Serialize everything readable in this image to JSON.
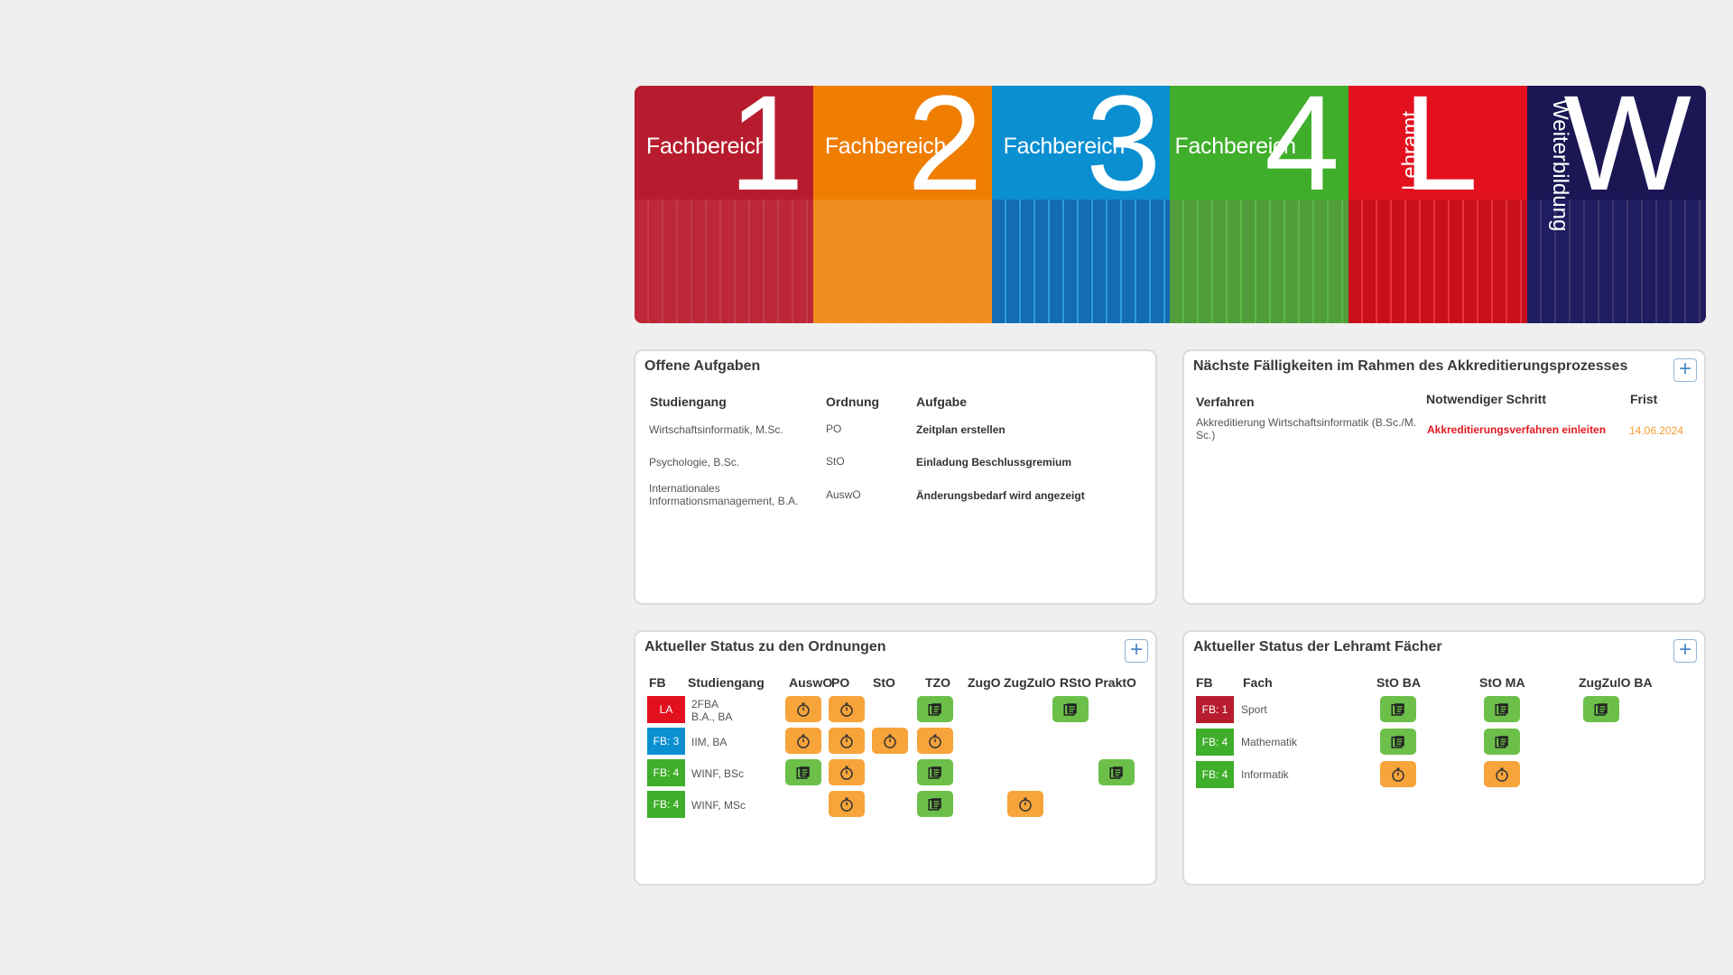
{
  "banner": {
    "tiles": [
      {
        "word": "Fachbereich",
        "big": "1",
        "color": "#b71c2e",
        "photo": "#c23040"
      },
      {
        "word": "Fachbereich",
        "big": "2",
        "color": "#ef7d00",
        "photo": "#f39a3a"
      },
      {
        "word": "Fachbereich",
        "big": "3",
        "color": "#0a8fd1",
        "photo": "#1c4f9a"
      },
      {
        "word": "Fachbereich",
        "big": "4",
        "color": "#3fae2a",
        "photo": "#5f8f4a"
      },
      {
        "word": "Lehramt",
        "big": "L",
        "color": "#e3101e",
        "photo": "#b0101a"
      },
      {
        "word": "Weiterbildung",
        "big": "W",
        "color": "#1b1654",
        "photo": "#25206a"
      }
    ]
  },
  "tasks": {
    "title": "Offene Aufgaben",
    "headers": {
      "program": "Studiengang",
      "order": "Ordnung",
      "task": "Aufgabe"
    },
    "rows": [
      {
        "program": "Wirtschaftsinformatik, M.Sc.",
        "order": "PO",
        "task": "Zeitplan erstellen"
      },
      {
        "program": "Psychologie, B.Sc.",
        "order": "StO",
        "task": "Einladung Beschlussgremium"
      },
      {
        "program": "Internationales Informationsmanagement, B.A.",
        "order": "AuswO",
        "task": "Änderungsbedarf wird angezeigt"
      }
    ]
  },
  "deadlines": {
    "title": "Nächste Fälligkeiten im Rahmen des Akkreditierungsprozesses",
    "headers": {
      "procedure": "Verfahren",
      "step": "Notwendiger Schritt",
      "due": "Frist"
    },
    "rows": [
      {
        "procedure": "Akkreditierung Wirtschaftsinformatik (B.Sc./M. Sc.)",
        "step": "Akkreditierungsverfahren einleiten",
        "due": "14.06.2024"
      }
    ]
  },
  "ordnungen": {
    "title": "Aktueller Status zu den Ordnungen",
    "headers": {
      "fb": "FB",
      "program": "Studiengang",
      "cols": [
        "AuswO",
        "PO",
        "StO",
        "TZO",
        "ZugO",
        "ZugZulO",
        "RStO",
        "PraktO"
      ]
    },
    "rows": [
      {
        "badge": "LA",
        "badge_color": "#e3101e",
        "program_line1": "2FBA",
        "program_line2": "B.A., BA",
        "cells": [
          "clock",
          "clock",
          "",
          "doc",
          "",
          "",
          "doc",
          ""
        ]
      },
      {
        "badge": "FB: 3",
        "badge_color": "#0a8fd1",
        "program_line1": "IIM, BA",
        "program_line2": "",
        "cells": [
          "clock",
          "clock",
          "clock",
          "clock",
          "",
          "",
          "",
          ""
        ]
      },
      {
        "badge": "FB: 4",
        "badge_color": "#3fae2a",
        "program_line1": "WINF, BSc",
        "program_line2": "",
        "cells": [
          "doc",
          "clock",
          "",
          "doc",
          "",
          "",
          "",
          "doc"
        ]
      },
      {
        "badge": "FB: 4",
        "badge_color": "#3fae2a",
        "program_line1": "WINF, MSc",
        "program_line2": "",
        "cells": [
          "",
          "clock",
          "",
          "doc",
          "",
          "clock",
          "",
          ""
        ]
      }
    ]
  },
  "lehramt": {
    "title": "Aktueller Status der Lehramt Fächer",
    "headers": {
      "fb": "FB",
      "subject": "Fach",
      "cols": [
        "StO BA",
        "StO MA",
        "ZugZulO BA"
      ]
    },
    "rows": [
      {
        "badge": "FB: 1",
        "badge_color": "#b71c2e",
        "subject": "Sport",
        "cells": [
          "doc",
          "doc",
          "doc"
        ]
      },
      {
        "badge": "FB: 4",
        "badge_color": "#3fae2a",
        "subject": "Mathematik",
        "cells": [
          "doc",
          "doc",
          ""
        ]
      },
      {
        "badge": "FB: 4",
        "badge_color": "#3fae2a",
        "subject": "Informatik",
        "cells": [
          "clock",
          "clock",
          ""
        ]
      }
    ]
  },
  "icons": {
    "clock": "stopwatch-icon",
    "doc": "document-icon",
    "add": "plus-icon"
  },
  "plus_label": "+"
}
